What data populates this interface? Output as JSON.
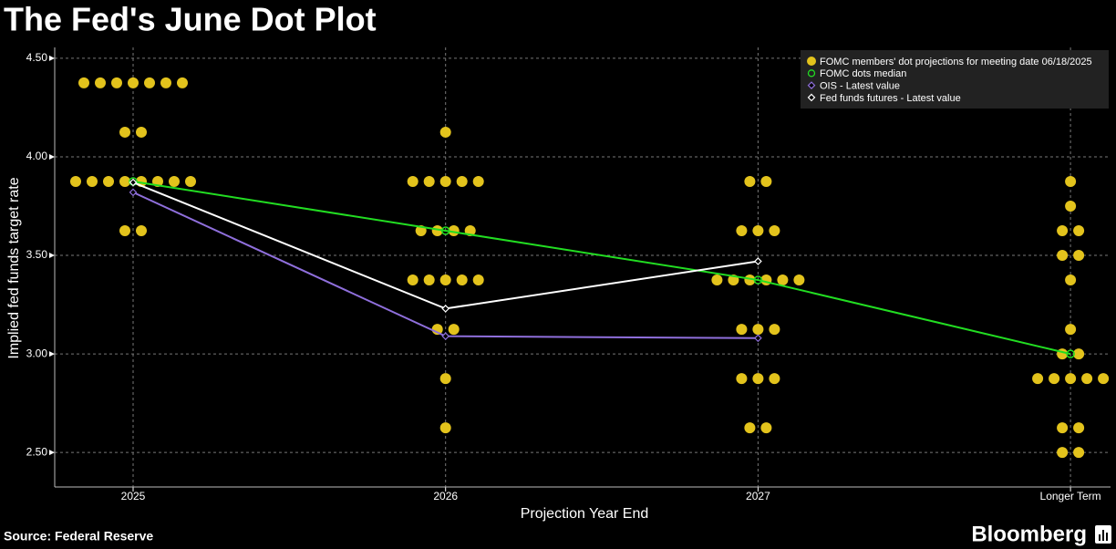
{
  "chart_data": {
    "type": "dot",
    "title": "The Fed's June Dot Plot",
    "ylabel": "Implied fed funds target rate",
    "xlabel": "Projection Year End",
    "source": "Source: Federal Reserve",
    "brand": "Bloomberg",
    "categories": [
      "2025",
      "2026",
      "2027",
      "Longer Term"
    ],
    "ylim": [
      2.325,
      4.555
    ],
    "yticks": [
      {
        "value": 2.5,
        "label": "2.50"
      },
      {
        "value": 3.0,
        "label": "3.00"
      },
      {
        "value": 3.5,
        "label": "3.50"
      },
      {
        "value": 4.0,
        "label": "4.00"
      },
      {
        "value": 4.5,
        "label": "4.50"
      }
    ],
    "grid": true,
    "legend": "top-right",
    "series": [
      {
        "name": "FOMC members' dot projections for meeting date 06/18/2025",
        "color": "#e3c31c",
        "marker": "dot",
        "values": [
          [
            4.375,
            4.375,
            4.375,
            4.375,
            4.375,
            4.375,
            4.375,
            4.125,
            4.125,
            3.875,
            3.875,
            3.875,
            3.875,
            3.875,
            3.875,
            3.875,
            3.875,
            3.625,
            3.625
          ],
          [
            4.125,
            3.875,
            3.875,
            3.875,
            3.875,
            3.875,
            3.625,
            3.625,
            3.625,
            3.625,
            3.375,
            3.375,
            3.375,
            3.375,
            3.375,
            3.125,
            3.125,
            2.875,
            2.625
          ],
          [
            3.875,
            3.875,
            3.625,
            3.625,
            3.625,
            3.375,
            3.375,
            3.375,
            3.375,
            3.375,
            3.375,
            3.125,
            3.125,
            3.125,
            2.875,
            2.875,
            2.875,
            2.625,
            2.625
          ],
          [
            3.875,
            3.75,
            3.625,
            3.625,
            3.5,
            3.5,
            3.375,
            3.125,
            3.0,
            3.0,
            2.875,
            2.875,
            2.875,
            2.875,
            2.875,
            2.625,
            2.625,
            2.5,
            2.5
          ]
        ]
      },
      {
        "name": "FOMC dots median",
        "color": "#22dd22",
        "marker": "circle",
        "values": [
          3.875,
          3.625,
          3.375,
          3.0
        ]
      },
      {
        "name": "OIS - Latest value",
        "color": "#8f6fdc",
        "marker": "diamond",
        "values": [
          3.82,
          3.09,
          3.08,
          null
        ]
      },
      {
        "name": "Fed funds futures - Latest value",
        "color": "#ffffff",
        "marker": "diamond",
        "values": [
          3.87,
          3.23,
          3.47,
          null
        ]
      }
    ]
  }
}
